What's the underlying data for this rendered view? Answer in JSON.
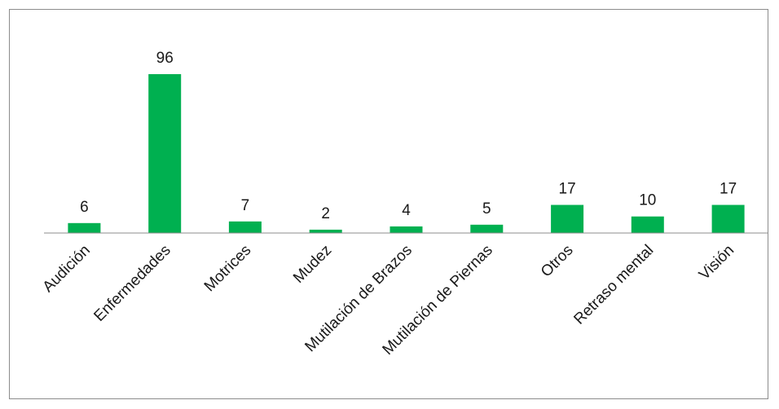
{
  "chart_data": {
    "type": "bar",
    "categories": [
      "Audición",
      "Enfermedades",
      "Motrices",
      "Mudez",
      "Mutilación de Brazos",
      "Mutilación de Piernas",
      "Otros",
      "Retraso mental",
      "Visión"
    ],
    "values": [
      6,
      96,
      7,
      2,
      4,
      5,
      17,
      10,
      17
    ],
    "data_labels": [
      "6",
      "96",
      "7",
      "2",
      "4",
      "5",
      "17",
      "10",
      "17"
    ],
    "title": "",
    "xlabel": "",
    "ylabel": "",
    "ylim": [
      0,
      100
    ],
    "grid": false,
    "legend": "none",
    "bar_color": "#00b050"
  }
}
